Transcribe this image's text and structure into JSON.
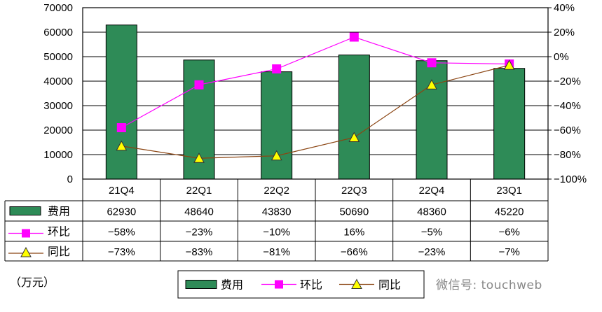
{
  "chart_data": {
    "type": "bar",
    "categories": [
      "21Q4",
      "22Q1",
      "22Q2",
      "22Q3",
      "22Q4",
      "23Q1"
    ],
    "unit_label": "（万元）",
    "y_left": {
      "min": 0,
      "max": 70000,
      "step": 10000,
      "ticks": [
        "70000",
        "60000",
        "50000",
        "40000",
        "30000",
        "20000",
        "10000",
        "0"
      ]
    },
    "y_right": {
      "min": -100,
      "max": 40,
      "step": 20,
      "ticks": [
        "40%",
        "20%",
        "0%",
        "−20%",
        "−40%",
        "−60%",
        "−80%",
        "−100%"
      ]
    },
    "grid": true,
    "legend_position": "bottom",
    "series": [
      {
        "name": "费用",
        "type": "bar",
        "axis": "left",
        "color": "#2e8b57",
        "values": [
          62930,
          48640,
          43830,
          50690,
          48360,
          45220
        ],
        "labels": [
          "62930",
          "48640",
          "43830",
          "50690",
          "48360",
          "45220"
        ]
      },
      {
        "name": "环比",
        "type": "line",
        "axis": "right",
        "color": "#ff00ff",
        "marker": "square",
        "values": [
          -58,
          -23,
          -10,
          16,
          -5,
          -6
        ],
        "labels": [
          "−58%",
          "−23%",
          "−10%",
          "16%",
          "−5%",
          "−6%"
        ]
      },
      {
        "name": "同比",
        "type": "line",
        "axis": "right",
        "color": "#8b4513",
        "marker": "triangle",
        "marker_color": "#ffff00",
        "values": [
          -73,
          -83,
          -81,
          -66,
          -23,
          -7
        ],
        "labels": [
          "−73%",
          "−83%",
          "−81%",
          "−66%",
          "−23%",
          "−7%"
        ]
      }
    ]
  },
  "watermark": "微信号: touchweb"
}
